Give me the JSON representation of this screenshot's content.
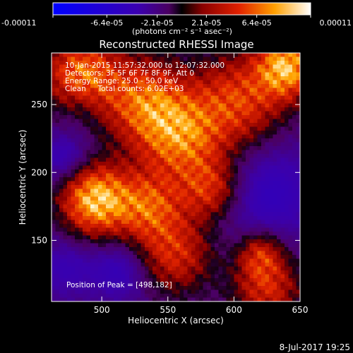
{
  "chart_data": {
    "type": "heatmap",
    "title": "Reconstructed RHESSI Image",
    "xlabel": "Heliocentric X (arcsec)",
    "ylabel": "Heliocentric Y (arcsec)",
    "xlim": [
      462,
      650
    ],
    "ylim": [
      105,
      288
    ],
    "x_ticks": [
      "500",
      "550",
      "600",
      "650"
    ],
    "x_tick_values": [
      500,
      550,
      600,
      650
    ],
    "y_ticks": [
      "150",
      "200",
      "250"
    ],
    "y_tick_values": [
      150,
      200,
      250
    ],
    "colorbar": {
      "range": [
        -0.00011,
        0.00011
      ],
      "tick_labels": [
        "-0.00011",
        "-6.4e-05",
        "-2.1e-05",
        "2.1e-05",
        "6.4e-05",
        "0.00011"
      ],
      "tick_values": [
        -0.00011,
        -6.4e-05,
        -2.1e-05,
        2.1e-05,
        6.4e-05,
        0.00011
      ],
      "units": "(photons cm⁻² s⁻¹ asec⁻²)"
    },
    "annotations": [
      "10-Jan-2015 11:57:32.000 to 12:07:32.000",
      "Detectors: 3F 5F 6F 7F 8F 9F, Att 0",
      "Energy Range: 25.0 - 50.0 keV",
      "Clean     Total counts: 6.02E+03"
    ],
    "peak_label": "Position of Peak = [498,182]",
    "peak": [
      498,
      182
    ],
    "bright_regions": [
      {
        "x": 495,
        "y": 180,
        "value": 0.00011,
        "spread": 18
      },
      {
        "x": 485,
        "y": 272,
        "value": 8e-05,
        "spread": 20
      },
      {
        "x": 533,
        "y": 252,
        "value": 7e-05,
        "spread": 22
      },
      {
        "x": 560,
        "y": 225,
        "value": 7e-05,
        "spread": 22
      },
      {
        "x": 603,
        "y": 252,
        "value": 6e-05,
        "spread": 24
      },
      {
        "x": 640,
        "y": 278,
        "value": 0.0001,
        "spread": 16
      },
      {
        "x": 535,
        "y": 175,
        "value": 6e-05,
        "spread": 18
      },
      {
        "x": 555,
        "y": 140,
        "value": 5e-05,
        "spread": 20
      },
      {
        "x": 582,
        "y": 188,
        "value": 5e-05,
        "spread": 16
      },
      {
        "x": 625,
        "y": 115,
        "value": 5e-05,
        "spread": 18
      },
      {
        "x": 620,
        "y": 140,
        "value": 4e-05,
        "spread": 12
      }
    ],
    "dim_regions": [
      {
        "x": 472,
        "y": 210,
        "value": -4e-05,
        "spread": 14
      },
      {
        "x": 472,
        "y": 130,
        "value": -3e-05,
        "spread": 16
      },
      {
        "x": 515,
        "y": 128,
        "value": -4e-05,
        "spread": 16
      },
      {
        "x": 625,
        "y": 185,
        "value": -4e-05,
        "spread": 28
      },
      {
        "x": 485,
        "y": 250,
        "value": -2e-05,
        "spread": 12
      }
    ]
  },
  "footer_date": "8-Jul-2017 19:25"
}
